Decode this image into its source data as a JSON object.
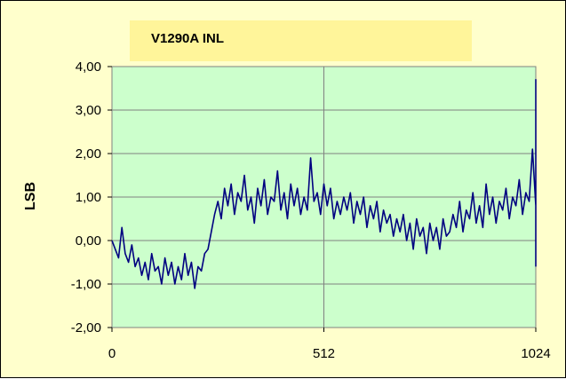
{
  "chart_data": {
    "type": "line",
    "title": "V1290A INL",
    "xlabel": "",
    "ylabel": "LSB",
    "xlim": [
      0,
      1024
    ],
    "ylim": [
      -2,
      4
    ],
    "x_ticks": [
      0,
      512,
      1024
    ],
    "x_tick_labels": [
      "0",
      "512",
      "1024"
    ],
    "y_ticks": [
      -2,
      -1,
      0,
      1,
      2,
      3,
      4
    ],
    "y_tick_labels": [
      "-2,00",
      "-1,00",
      "0,00",
      "1,00",
      "2,00",
      "3,00",
      "4,00"
    ],
    "grid": {
      "horizontal": true,
      "vertical": true
    },
    "colors": {
      "line": "#000080",
      "plot_bg": "#ccffcc",
      "chart_bg": "#ffffcc",
      "title_bg": "#fff59a"
    },
    "series": [
      {
        "values_note_free": true,
        "x_start": 0,
        "x_step": 8,
        "values": [
          0.0,
          -0.2,
          -0.4,
          0.3,
          -0.3,
          -0.5,
          -0.1,
          -0.6,
          -0.4,
          -0.8,
          -0.5,
          -0.9,
          -0.3,
          -0.7,
          -0.6,
          -1.0,
          -0.4,
          -0.8,
          -0.5,
          -1.0,
          -0.6,
          -0.9,
          -0.3,
          -0.8,
          -0.5,
          -1.1,
          -0.6,
          -0.7,
          -0.3,
          -0.2,
          0.2,
          0.6,
          0.9,
          0.5,
          1.2,
          0.8,
          1.3,
          0.6,
          1.1,
          0.9,
          1.5,
          0.7,
          1.0,
          0.4,
          1.2,
          0.8,
          1.4,
          0.6,
          1.0,
          0.9,
          1.6,
          0.7,
          1.1,
          0.5,
          1.3,
          0.8,
          1.2,
          0.6,
          1.0,
          0.7,
          1.9,
          0.9,
          1.1,
          0.6,
          1.3,
          0.8,
          1.2,
          0.5,
          0.9,
          0.6,
          1.0,
          0.7,
          1.1,
          0.4,
          0.9,
          0.6,
          1.0,
          0.3,
          0.8,
          0.5,
          0.9,
          0.2,
          0.7,
          0.4,
          0.6,
          0.1,
          0.5,
          0.2,
          0.6,
          0.0,
          0.4,
          -0.2,
          0.5,
          0.1,
          0.3,
          -0.3,
          0.4,
          0.0,
          0.3,
          -0.2,
          0.5,
          0.1,
          0.2,
          0.6,
          0.3,
          0.9,
          0.2,
          0.7,
          0.5,
          1.1,
          0.4,
          0.8,
          0.3,
          1.3,
          0.6,
          1.0,
          0.4,
          0.9,
          0.7,
          1.2,
          0.5,
          1.0,
          0.8,
          1.4,
          0.6,
          1.1,
          0.9,
          2.1,
          0.8,
          1.2,
          0.6,
          1.0,
          0.4,
          0.2,
          0.6,
          0.0,
          0.5,
          0.3,
          0.8,
          0.4,
          0.7,
          0.1,
          0.5,
          0.9,
          0.4,
          0.8,
          0.2,
          0.6,
          0.0,
          0.7,
          0.3,
          2.7,
          0.4,
          0.8,
          0.1,
          0.5,
          0.9,
          0.2,
          0.6,
          1.0,
          0.3,
          0.7,
          0.4,
          1.1,
          0.2,
          0.8,
          0.5,
          1.2,
          0.6,
          0.9,
          0.3,
          1.0,
          0.5,
          3.7,
          0.7,
          1.1,
          0.4,
          0.9,
          0.6,
          1.2,
          0.3,
          0.8,
          0.5,
          1.0,
          0.7,
          1.3,
          0.4,
          0.9,
          0.2,
          1.1,
          0.6,
          0.8,
          0.4,
          1.4,
          0.7,
          2.2,
          0.5,
          1.0,
          0.8,
          1.3,
          0.6,
          0.9,
          1.2,
          0.7,
          0.5,
          -0.6
        ]
      }
    ]
  }
}
